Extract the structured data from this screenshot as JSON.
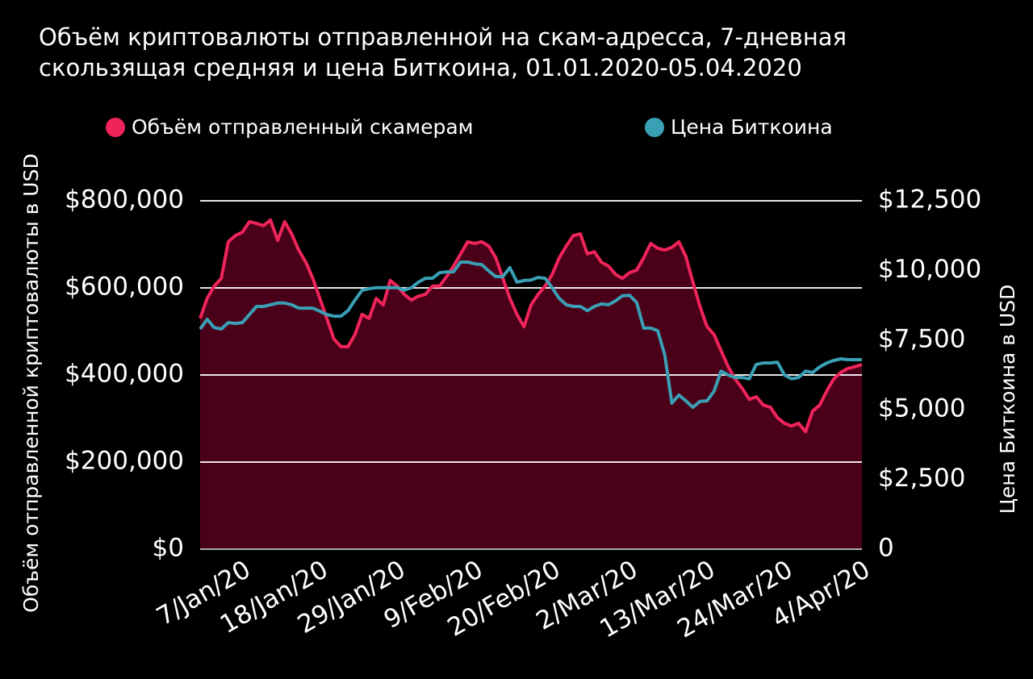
{
  "chart_data": {
    "type": "line",
    "title": [
      "Объём криптовалюты отправленной на скам-адресса, 7-дневная",
      "скользящая средняя и цена Биткоина, 01.01.2020-05.04.2020"
    ],
    "ylabel": "Объём отправленной криптовалюты в USD",
    "y2label": "Цена Биткоина в USD",
    "categories": [
      null,
      null,
      null,
      null,
      null,
      null,
      "7/Jan/20",
      null,
      null,
      null,
      null,
      null,
      null,
      null,
      null,
      null,
      null,
      "18/Jan/20",
      null,
      null,
      null,
      null,
      null,
      null,
      null,
      null,
      null,
      null,
      "29/Jan/20",
      null,
      null,
      null,
      null,
      null,
      null,
      null,
      null,
      null,
      null,
      "9/Feb/20",
      null,
      null,
      null,
      null,
      null,
      null,
      null,
      null,
      null,
      null,
      "20/Feb/20",
      null,
      null,
      null,
      null,
      null,
      null,
      null,
      null,
      null,
      null,
      "2/Mar/20",
      null,
      null,
      null,
      null,
      null,
      null,
      null,
      null,
      null,
      null,
      "13/Mar/20",
      null,
      null,
      null,
      null,
      null,
      null,
      null,
      null,
      null,
      null,
      "24/Mar/20",
      null,
      null,
      null,
      null,
      null,
      null,
      null,
      null,
      null,
      null,
      "4/Apr/20"
    ],
    "series": [
      {
        "name": "Объём отправленный скамерам",
        "color": "#f0245a",
        "fill": "#4a0018",
        "values": [
          530000,
          576000,
          604000,
          622000,
          706000,
          720000,
          728000,
          752000,
          748000,
          743000,
          756000,
          709000,
          752000,
          724000,
          687000,
          659000,
          622000,
          576000,
          530000,
          483000,
          465000,
          465000,
          493000,
          539000,
          530000,
          576000,
          561000,
          617000,
          604000,
          585000,
          572000,
          581000,
          585000,
          604000,
          604000,
          626000,
          650000,
          678000,
          706000,
          702000,
          706000,
          696000,
          669000,
          622000,
          576000,
          539000,
          511000,
          561000,
          585000,
          604000,
          631000,
          669000,
          696000,
          720000,
          724000,
          678000,
          683000,
          659000,
          650000,
          631000,
          622000,
          635000,
          641000,
          669000,
          702000,
          691000,
          687000,
          693000,
          706000,
          672000,
          613000,
          557000,
          511000,
          493000,
          456000,
          419000,
          391000,
          369000,
          344000,
          350000,
          331000,
          326000,
          302000,
          289000,
          283000,
          289000,
          270000,
          317000,
          331000,
          363000,
          391000,
          406000,
          415000,
          419000,
          424000
        ]
      },
      {
        "name": "Цена Биткоина",
        "color": "#3aa0b5",
        "axis": "y2",
        "values": [
          7900,
          8250,
          7950,
          7900,
          8130,
          8100,
          8130,
          8420,
          8710,
          8710,
          8770,
          8830,
          8830,
          8770,
          8650,
          8650,
          8650,
          8540,
          8420,
          8360,
          8360,
          8560,
          8940,
          9290,
          9350,
          9380,
          9380,
          9380,
          9380,
          9290,
          9380,
          9580,
          9720,
          9720,
          9920,
          9950,
          9950,
          10300,
          10300,
          10240,
          10210,
          9980,
          9780,
          9780,
          10100,
          9580,
          9640,
          9660,
          9750,
          9720,
          9380,
          9000,
          8770,
          8710,
          8710,
          8560,
          8710,
          8800,
          8770,
          8910,
          9090,
          9110,
          8850,
          7930,
          7930,
          7840,
          6970,
          5240,
          5530,
          5320,
          5090,
          5300,
          5320,
          5670,
          6390,
          6250,
          6160,
          6160,
          6110,
          6630,
          6680,
          6680,
          6710,
          6250,
          6110,
          6160,
          6390,
          6340,
          6540,
          6680,
          6770,
          6830,
          6800,
          6800,
          6800
        ]
      }
    ],
    "ylim": [
      0,
      800000
    ],
    "yticks": [
      {
        "value": 0,
        "label": "$0"
      },
      {
        "value": 200000,
        "label": "$200,000"
      },
      {
        "value": 400000,
        "label": "$400,000"
      },
      {
        "value": 600000,
        "label": "$600,000"
      },
      {
        "value": 800000,
        "label": "$800,000"
      }
    ],
    "y2lim": [
      0,
      12500
    ],
    "y2ticks": [
      0,
      {
        "value": 2500,
        "label": "$2,500"
      },
      {
        "value": 5000,
        "label": "$5,000"
      },
      {
        "value": 7500,
        "label": "$7,500"
      },
      {
        "value": 10000,
        "label": "$10,000"
      },
      {
        "value": 12500,
        "label": "$12,500"
      }
    ],
    "grid": true
  }
}
